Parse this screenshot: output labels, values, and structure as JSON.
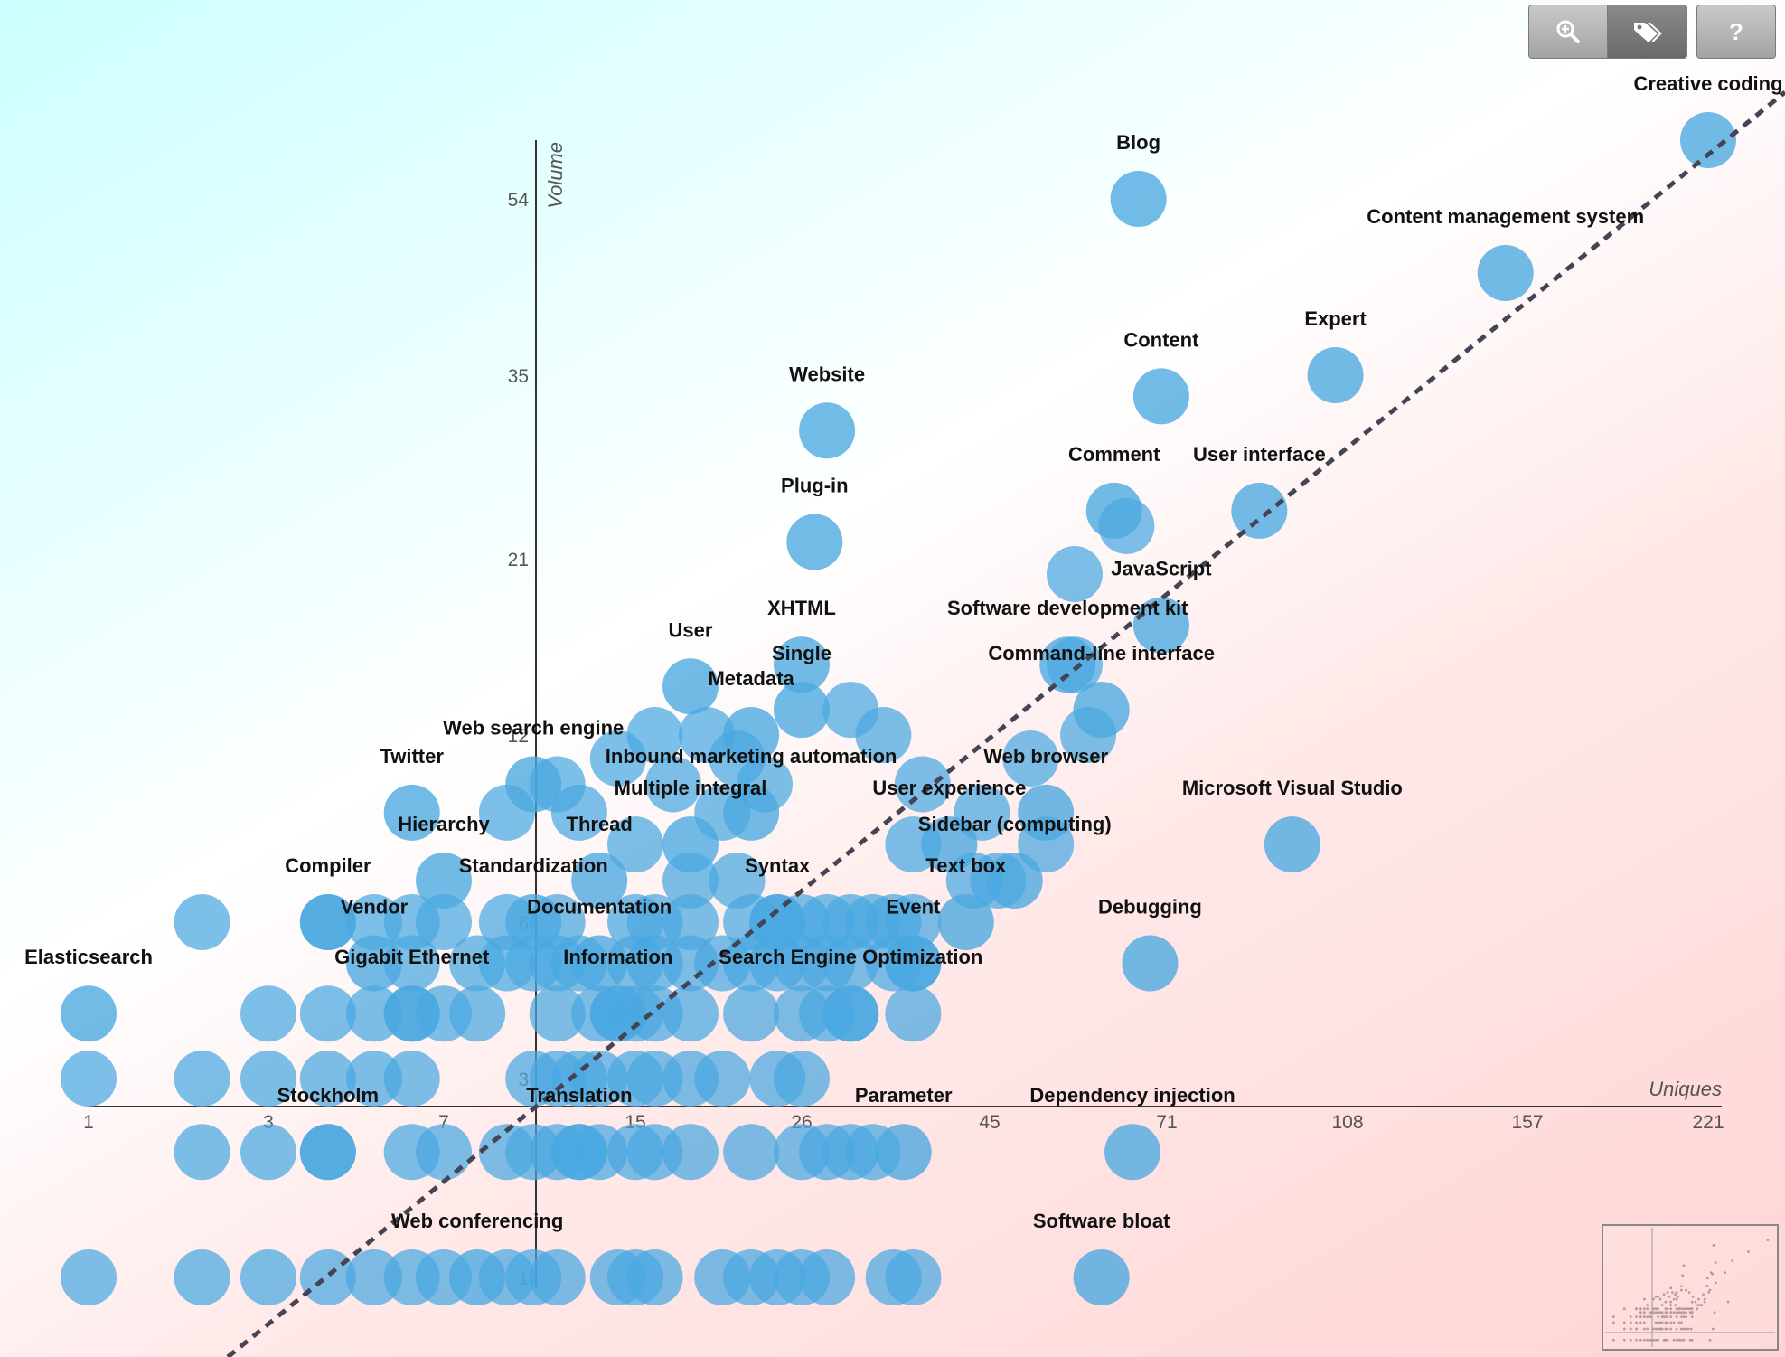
{
  "toolbar": {
    "zoom": {
      "icon": "zoom-in-icon"
    },
    "labels": {
      "icon": "tags-icon",
      "active": true
    },
    "help": {
      "icon": "help-icon",
      "label": "?"
    }
  },
  "colors": {
    "bubble": "#4aa8e0",
    "axis": "#333333",
    "trend": "#444455"
  },
  "chart_data": {
    "type": "scatter",
    "xlabel": "Uniques",
    "ylabel": "Volume",
    "x_ticks": [
      "1",
      "3",
      "7",
      "15",
      "26",
      "45",
      "71",
      "108",
      "157",
      "221"
    ],
    "y_ticks": [
      "1",
      "3",
      "6",
      "12",
      "21",
      "35",
      "54"
    ],
    "trendline": true,
    "labeled_points": [
      {
        "label": "Creative coding",
        "x": 221,
        "y": 62
      },
      {
        "label": "Blog",
        "x": 66,
        "y": 54
      },
      {
        "label": "Content management system",
        "x": 150,
        "y": 45
      },
      {
        "label": "Expert",
        "x": 105,
        "y": 35
      },
      {
        "label": "Content",
        "x": 70,
        "y": 33
      },
      {
        "label": "Website",
        "x": 28,
        "y": 30
      },
      {
        "label": "User interface",
        "x": 88,
        "y": 24
      },
      {
        "label": "Comment",
        "x": 62,
        "y": 24
      },
      {
        "label": "Plug-in",
        "x": 27,
        "y": 22
      },
      {
        "label": "JavaScript",
        "x": 70,
        "y": 17
      },
      {
        "label": "XHTML",
        "x": 26,
        "y": 15
      },
      {
        "label": "Software development kit",
        "x": 55,
        "y": 15
      },
      {
        "label": "User",
        "x": 18,
        "y": 14
      },
      {
        "label": "Single",
        "x": 26,
        "y": 13
      },
      {
        "label": "Command-line interface",
        "x": 60,
        "y": 13
      },
      {
        "label": "Metadata",
        "x": 22,
        "y": 12
      },
      {
        "label": "Web search engine",
        "x": 10,
        "y": 10
      },
      {
        "label": "Inbound marketing automation",
        "x": 22,
        "y": 9
      },
      {
        "label": "Web browser",
        "x": 52,
        "y": 9
      },
      {
        "label": "Microsoft Visual Studio",
        "x": 95,
        "y": 8
      },
      {
        "label": "Twitter",
        "x": 6,
        "y": 9
      },
      {
        "label": "Multiple integral",
        "x": 18,
        "y": 8
      },
      {
        "label": "User experience",
        "x": 40,
        "y": 8
      },
      {
        "label": "Hierarchy",
        "x": 7,
        "y": 7
      },
      {
        "label": "Thread",
        "x": 13,
        "y": 7
      },
      {
        "label": "Sidebar (computing)",
        "x": 48,
        "y": 7
      },
      {
        "label": "Compiler",
        "x": 4,
        "y": 6
      },
      {
        "label": "Standardization",
        "x": 10,
        "y": 6
      },
      {
        "label": "Syntax",
        "x": 24,
        "y": 6
      },
      {
        "label": "Text box",
        "x": 42,
        "y": 6
      },
      {
        "label": "Debugging",
        "x": 68,
        "y": 5
      },
      {
        "label": "Elasticsearch",
        "x": 1,
        "y": 4
      },
      {
        "label": "Vendor",
        "x": 5,
        "y": 5
      },
      {
        "label": "Documentation",
        "x": 13,
        "y": 5
      },
      {
        "label": "Event",
        "x": 36,
        "y": 5
      },
      {
        "label": "Gigabit Ethernet",
        "x": 6,
        "y": 4
      },
      {
        "label": "Information",
        "x": 14,
        "y": 4
      },
      {
        "label": "Search Engine Optimization",
        "x": 30,
        "y": 4
      },
      {
        "label": "Stockholm",
        "x": 4,
        "y": 2
      },
      {
        "label": "Translation",
        "x": 12,
        "y": 2
      },
      {
        "label": "Parameter",
        "x": 35,
        "y": 2
      },
      {
        "label": "Dependency injection",
        "x": 65,
        "y": 2
      },
      {
        "label": "Web conferencing",
        "x": 8,
        "y": 1
      },
      {
        "label": "Software bloat",
        "x": 60,
        "y": 1
      }
    ]
  }
}
